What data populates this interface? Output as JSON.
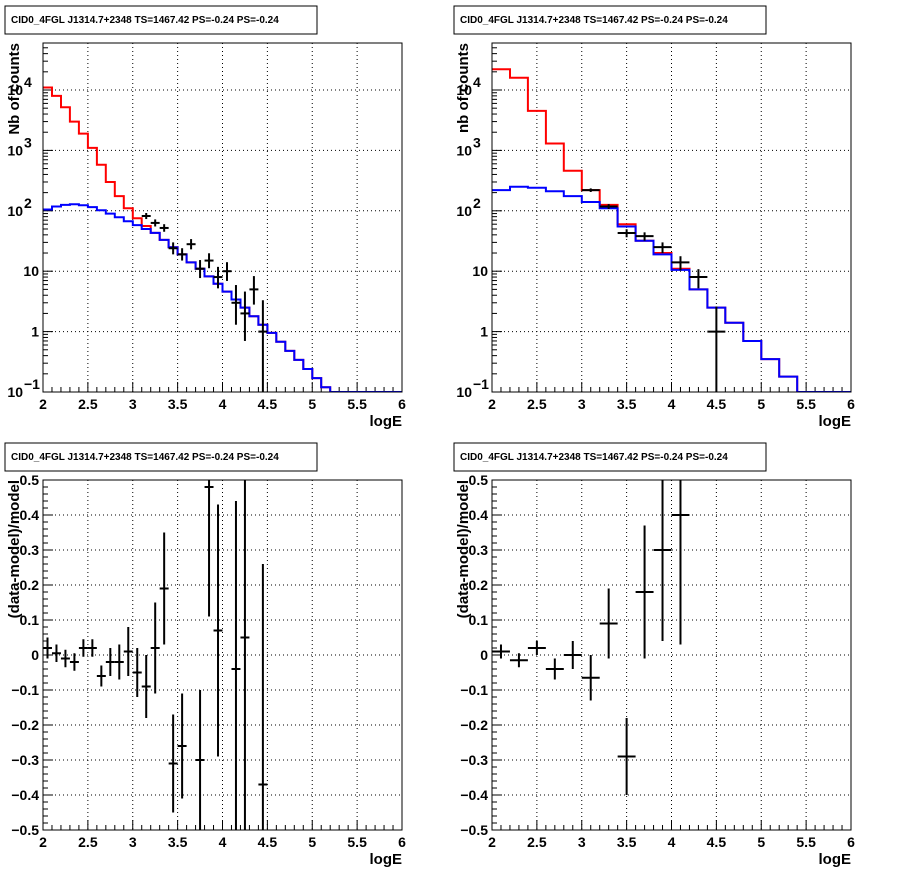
{
  "chart_data": [
    {
      "type": "line",
      "title": "CID0_4FGL J1314.7+2348 TS=1467.42 PS=-0.24 PS=-0.24",
      "xlabel": "logE",
      "ylabel": "Nb of counts",
      "xlim": [
        2,
        6
      ],
      "ylim": [
        0.1,
        60000
      ],
      "yscale": "log",
      "grid": true,
      "xticks": [
        "2",
        "2.5",
        "3",
        "3.5",
        "4",
        "4.5",
        "5",
        "5.5",
        "6"
      ],
      "yticks": [
        {
          "v": 0.1,
          "label": "10",
          "sup": "−1"
        },
        {
          "v": 1,
          "label": "1",
          "sup": ""
        },
        {
          "v": 10,
          "label": "10",
          "sup": ""
        },
        {
          "v": 100,
          "label": "10",
          "sup": "2"
        },
        {
          "v": 1000,
          "label": "10",
          "sup": "3"
        },
        {
          "v": 10000,
          "label": "10",
          "sup": "4"
        }
      ],
      "steps": [
        {
          "name": "",
          "color": "#ff0000",
          "edges": [
            2.0,
            2.1,
            2.2,
            2.3,
            2.4,
            2.5,
            2.6,
            2.7,
            2.8,
            2.9,
            3.0,
            3.1,
            3.2,
            3.3,
            3.4,
            3.5,
            3.6,
            3.7,
            3.8,
            3.9,
            4.0,
            4.1,
            4.2,
            4.3,
            4.4,
            4.5,
            4.6,
            4.7,
            4.8,
            4.9,
            5.0,
            5.1,
            5.2,
            5.3,
            5.4,
            5.5,
            5.6,
            5.7,
            5.8,
            5.9,
            6.0
          ],
          "values": [
            11000,
            8000,
            5200,
            3000,
            1900,
            1100,
            580,
            300,
            175,
            110,
            75,
            56,
            43,
            33,
            25,
            19,
            14,
            11,
            8.2,
            6.2,
            4.6,
            3.4,
            2.5,
            1.8,
            1.3,
            0.95,
            0.68,
            0.48,
            0.34,
            0.24,
            0.17,
            0.12,
            0.1,
            0.1,
            0.1,
            0.1,
            0.1,
            0.1,
            0.1,
            0.1
          ]
        },
        {
          "name": "",
          "color": "#0000ff",
          "edges": [
            2.0,
            2.1,
            2.2,
            2.3,
            2.4,
            2.5,
            2.6,
            2.7,
            2.8,
            2.9,
            3.0,
            3.1,
            3.2,
            3.3,
            3.4,
            3.5,
            3.6,
            3.7,
            3.8,
            3.9,
            4.0,
            4.1,
            4.2,
            4.3,
            4.4,
            4.5,
            4.6,
            4.7,
            4.8,
            4.9,
            5.0,
            5.1,
            5.2,
            5.3,
            5.4,
            5.5,
            5.6,
            5.7,
            5.8,
            5.9,
            6.0
          ],
          "values": [
            105,
            118,
            125,
            128,
            124,
            115,
            102,
            90,
            78,
            67,
            58,
            50,
            43,
            33,
            25,
            19,
            14,
            11,
            8.2,
            6.2,
            4.6,
            3.4,
            2.5,
            1.8,
            1.3,
            0.95,
            0.68,
            0.48,
            0.34,
            0.24,
            0.17,
            0.12,
            0.1,
            0.1,
            0.1,
            0.1,
            0.1,
            0.1,
            0.1,
            0.1
          ]
        }
      ],
      "points": [
        {
          "x": 3.15,
          "y": 82,
          "xerr": 0.05,
          "yerr": [
            9,
            10
          ]
        },
        {
          "x": 3.25,
          "y": 63,
          "xerr": 0.05,
          "yerr": [
            8,
            9
          ]
        },
        {
          "x": 3.35,
          "y": 52,
          "xerr": 0.05,
          "yerr": [
            7,
            8
          ]
        },
        {
          "x": 3.45,
          "y": 24,
          "xerr": 0.05,
          "yerr": [
            5,
            6
          ]
        },
        {
          "x": 3.55,
          "y": 19,
          "xerr": 0.05,
          "yerr": [
            4,
            5
          ]
        },
        {
          "x": 3.65,
          "y": 28,
          "xerr": 0.05,
          "yerr": [
            5,
            6
          ]
        },
        {
          "x": 3.75,
          "y": 11,
          "xerr": 0.05,
          "yerr": [
            3.3,
            4.3
          ]
        },
        {
          "x": 3.85,
          "y": 15,
          "xerr": 0.05,
          "yerr": [
            3.8,
            4.8
          ]
        },
        {
          "x": 3.95,
          "y": 8,
          "xerr": 0.05,
          "yerr": [
            2.8,
            3.8
          ]
        },
        {
          "x": 4.05,
          "y": 10,
          "xerr": 0.05,
          "yerr": [
            3.1,
            4.1
          ]
        },
        {
          "x": 4.15,
          "y": 3,
          "xerr": 0.05,
          "yerr": [
            1.7,
            2.9
          ]
        },
        {
          "x": 4.25,
          "y": 2,
          "xerr": 0.05,
          "yerr": [
            1.3,
            2.6
          ]
        },
        {
          "x": 4.35,
          "y": 5,
          "xerr": 0.05,
          "yerr": [
            2.2,
            3.3
          ]
        },
        {
          "x": 4.45,
          "y": 1,
          "xerr": 0.05,
          "yerr": [
            0.9,
            2.3
          ]
        }
      ]
    },
    {
      "type": "line",
      "title": "CID0_4FGL J1314.7+2348 TS=1467.42 PS=-0.24 PS=-0.24",
      "xlabel": "logE",
      "ylabel": "nb of counts",
      "xlim": [
        2,
        6
      ],
      "ylim": [
        0.1,
        60000
      ],
      "yscale": "log",
      "grid": true,
      "xticks": [
        "2",
        "2.5",
        "3",
        "3.5",
        "4",
        "4.5",
        "5",
        "5.5",
        "6"
      ],
      "yticks": [
        {
          "v": 0.1,
          "label": "10",
          "sup": "−1"
        },
        {
          "v": 1,
          "label": "1",
          "sup": ""
        },
        {
          "v": 10,
          "label": "10",
          "sup": ""
        },
        {
          "v": 100,
          "label": "10",
          "sup": "2"
        },
        {
          "v": 1000,
          "label": "10",
          "sup": "3"
        },
        {
          "v": 10000,
          "label": "10",
          "sup": "4"
        }
      ],
      "steps": [
        {
          "name": "",
          "color": "#ff0000",
          "edges": [
            2.0,
            2.2,
            2.4,
            2.6,
            2.8,
            3.0,
            3.2,
            3.4,
            3.6,
            3.8,
            4.0,
            4.2,
            4.4,
            4.6,
            4.8,
            5.0,
            5.2,
            5.4,
            5.6,
            5.8,
            6.0
          ],
          "values": [
            22000,
            16000,
            4500,
            1300,
            460,
            220,
            125,
            60,
            32,
            20,
            11,
            5,
            2.5,
            1.4,
            0.7,
            0.35,
            0.18,
            0.1,
            0.1,
            0.1
          ]
        },
        {
          "name": "",
          "color": "#0000ff",
          "edges": [
            2.0,
            2.2,
            2.4,
            2.6,
            2.8,
            3.0,
            3.2,
            3.4,
            3.6,
            3.8,
            4.0,
            4.2,
            4.4,
            4.6,
            4.8,
            5.0,
            5.2,
            5.4,
            5.6,
            5.8,
            6.0
          ],
          "values": [
            220,
            250,
            240,
            210,
            175,
            140,
            110,
            55,
            32,
            19,
            10.5,
            5,
            2.5,
            1.4,
            0.7,
            0.35,
            0.18,
            0.1,
            0.1,
            0.1
          ]
        }
      ],
      "points": [
        {
          "x": 3.1,
          "y": 220,
          "xerr": 0.1,
          "yerr": [
            15,
            15
          ]
        },
        {
          "x": 3.3,
          "y": 118,
          "xerr": 0.1,
          "yerr": [
            11,
            11
          ]
        },
        {
          "x": 3.5,
          "y": 43,
          "xerr": 0.1,
          "yerr": [
            6.5,
            6.5
          ]
        },
        {
          "x": 3.7,
          "y": 38,
          "xerr": 0.1,
          "yerr": [
            6,
            6
          ]
        },
        {
          "x": 3.9,
          "y": 25,
          "xerr": 0.1,
          "yerr": [
            5,
            5
          ]
        },
        {
          "x": 4.1,
          "y": 14,
          "xerr": 0.1,
          "yerr": [
            3.7,
            3.7
          ]
        },
        {
          "x": 4.3,
          "y": 8,
          "xerr": 0.1,
          "yerr": [
            2.8,
            2.8
          ]
        },
        {
          "x": 4.5,
          "y": 1,
          "xerr": 0.1,
          "yerr": [
            0.92,
            1.6
          ]
        }
      ]
    },
    {
      "type": "scatter",
      "title": "CID0_4FGL J1314.7+2348 TS=1467.42 PS=-0.24 PS=-0.24",
      "xlabel": "logE",
      "ylabel": "(data-model)/model",
      "xlim": [
        2,
        6
      ],
      "ylim": [
        -0.5,
        0.5
      ],
      "yscale": "linear",
      "grid": true,
      "xticks": [
        "2",
        "2.5",
        "3",
        "3.5",
        "4",
        "4.5",
        "5",
        "5.5",
        "6"
      ],
      "yticks": [
        {
          "v": -0.5,
          "label": "−0.5",
          "sup": ""
        },
        {
          "v": -0.4,
          "label": "−0.4",
          "sup": ""
        },
        {
          "v": -0.3,
          "label": "−0.3",
          "sup": ""
        },
        {
          "v": -0.2,
          "label": "−0.2",
          "sup": ""
        },
        {
          "v": -0.1,
          "label": "−0.1",
          "sup": ""
        },
        {
          "v": 0,
          "label": "0",
          "sup": ""
        },
        {
          "v": 0.1,
          "label": "0.1",
          "sup": ""
        },
        {
          "v": 0.2,
          "label": "0.2",
          "sup": ""
        },
        {
          "v": 0.3,
          "label": "0.3",
          "sup": ""
        },
        {
          "v": 0.4,
          "label": "0.4",
          "sup": ""
        },
        {
          "v": 0.5,
          "label": "0.5",
          "sup": ""
        }
      ],
      "steps": [],
      "points": [
        {
          "x": 2.05,
          "y": 0.02,
          "xerr": 0.05,
          "yerr": [
            0.03,
            0.03
          ]
        },
        {
          "x": 2.15,
          "y": 0.005,
          "xerr": 0.05,
          "yerr": [
            0.025,
            0.025
          ]
        },
        {
          "x": 2.25,
          "y": -0.01,
          "xerr": 0.05,
          "yerr": [
            0.025,
            0.025
          ]
        },
        {
          "x": 2.35,
          "y": -0.02,
          "xerr": 0.05,
          "yerr": [
            0.025,
            0.025
          ]
        },
        {
          "x": 2.45,
          "y": 0.02,
          "xerr": 0.05,
          "yerr": [
            0.025,
            0.025
          ]
        },
        {
          "x": 2.55,
          "y": 0.02,
          "xerr": 0.05,
          "yerr": [
            0.025,
            0.025
          ]
        },
        {
          "x": 2.65,
          "y": -0.06,
          "xerr": 0.05,
          "yerr": [
            0.03,
            0.03
          ]
        },
        {
          "x": 2.75,
          "y": -0.02,
          "xerr": 0.05,
          "yerr": [
            0.04,
            0.04
          ]
        },
        {
          "x": 2.85,
          "y": -0.02,
          "xerr": 0.05,
          "yerr": [
            0.05,
            0.05
          ]
        },
        {
          "x": 2.95,
          "y": 0.01,
          "xerr": 0.05,
          "yerr": [
            0.07,
            0.07
          ]
        },
        {
          "x": 3.05,
          "y": -0.05,
          "xerr": 0.05,
          "yerr": [
            0.07,
            0.07
          ]
        },
        {
          "x": 3.15,
          "y": -0.09,
          "xerr": 0.05,
          "yerr": [
            0.09,
            0.09
          ]
        },
        {
          "x": 3.25,
          "y": 0.02,
          "xerr": 0.05,
          "yerr": [
            0.13,
            0.13
          ]
        },
        {
          "x": 3.35,
          "y": 0.19,
          "xerr": 0.05,
          "yerr": [
            0.16,
            0.16
          ]
        },
        {
          "x": 3.45,
          "y": -0.31,
          "xerr": 0.05,
          "yerr": [
            0.14,
            0.14
          ]
        },
        {
          "x": 3.55,
          "y": -0.26,
          "xerr": 0.05,
          "yerr": [
            0.15,
            0.15
          ]
        },
        {
          "x": 3.75,
          "y": -0.3,
          "xerr": 0.05,
          "yerr": [
            0.2,
            0.2
          ]
        },
        {
          "x": 3.85,
          "y": 0.48,
          "xerr": 0.05,
          "yerr": [
            0.37,
            0.37
          ]
        },
        {
          "x": 3.95,
          "y": 0.07,
          "xerr": 0.05,
          "yerr": [
            0.36,
            0.36
          ]
        },
        {
          "x": 4.15,
          "y": -0.04,
          "xerr": 0.05,
          "yerr": [
            0.46,
            0.48
          ]
        },
        {
          "x": 4.25,
          "y": 0.05,
          "xerr": 0.05,
          "yerr": [
            0.55,
            0.6
          ]
        },
        {
          "x": 4.45,
          "y": -0.37,
          "xerr": 0.05,
          "yerr": [
            0.63,
            0.63
          ]
        }
      ]
    },
    {
      "type": "scatter",
      "title": "CID0_4FGL J1314.7+2348 TS=1467.42 PS=-0.24 PS=-0.24",
      "xlabel": "logE",
      "ylabel": "(data-model)/model",
      "xlim": [
        2,
        6
      ],
      "ylim": [
        -0.5,
        0.5
      ],
      "yscale": "linear",
      "grid": true,
      "xticks": [
        "2",
        "2.5",
        "3",
        "3.5",
        "4",
        "4.5",
        "5",
        "5.5",
        "6"
      ],
      "yticks": [
        {
          "v": -0.5,
          "label": "−0.5",
          "sup": ""
        },
        {
          "v": -0.4,
          "label": "−0.4",
          "sup": ""
        },
        {
          "v": -0.3,
          "label": "−0.3",
          "sup": ""
        },
        {
          "v": -0.2,
          "label": "−0.2",
          "sup": ""
        },
        {
          "v": -0.1,
          "label": "−0.1",
          "sup": ""
        },
        {
          "v": 0,
          "label": "0",
          "sup": ""
        },
        {
          "v": 0.1,
          "label": "0.1",
          "sup": ""
        },
        {
          "v": 0.2,
          "label": "0.2",
          "sup": ""
        },
        {
          "v": 0.3,
          "label": "0.3",
          "sup": ""
        },
        {
          "v": 0.4,
          "label": "0.4",
          "sup": ""
        },
        {
          "v": 0.5,
          "label": "0.5",
          "sup": ""
        }
      ],
      "steps": [],
      "points": [
        {
          "x": 2.1,
          "y": 0.01,
          "xerr": 0.1,
          "yerr": [
            0.02,
            0.02
          ]
        },
        {
          "x": 2.3,
          "y": -0.015,
          "xerr": 0.1,
          "yerr": [
            0.02,
            0.02
          ]
        },
        {
          "x": 2.5,
          "y": 0.02,
          "xerr": 0.1,
          "yerr": [
            0.02,
            0.02
          ]
        },
        {
          "x": 2.7,
          "y": -0.04,
          "xerr": 0.1,
          "yerr": [
            0.03,
            0.03
          ]
        },
        {
          "x": 2.9,
          "y": 0,
          "xerr": 0.1,
          "yerr": [
            0.04,
            0.04
          ]
        },
        {
          "x": 3.1,
          "y": -0.065,
          "xerr": 0.1,
          "yerr": [
            0.065,
            0.065
          ]
        },
        {
          "x": 3.3,
          "y": 0.09,
          "xerr": 0.1,
          "yerr": [
            0.1,
            0.1
          ]
        },
        {
          "x": 3.5,
          "y": -0.29,
          "xerr": 0.1,
          "yerr": [
            0.11,
            0.11
          ]
        },
        {
          "x": 3.7,
          "y": 0.18,
          "xerr": 0.1,
          "yerr": [
            0.19,
            0.19
          ]
        },
        {
          "x": 3.9,
          "y": 0.3,
          "xerr": 0.1,
          "yerr": [
            0.26,
            0.26
          ]
        },
        {
          "x": 4.1,
          "y": 0.4,
          "xerr": 0.1,
          "yerr": [
            0.37,
            0.37
          ]
        }
      ]
    }
  ]
}
